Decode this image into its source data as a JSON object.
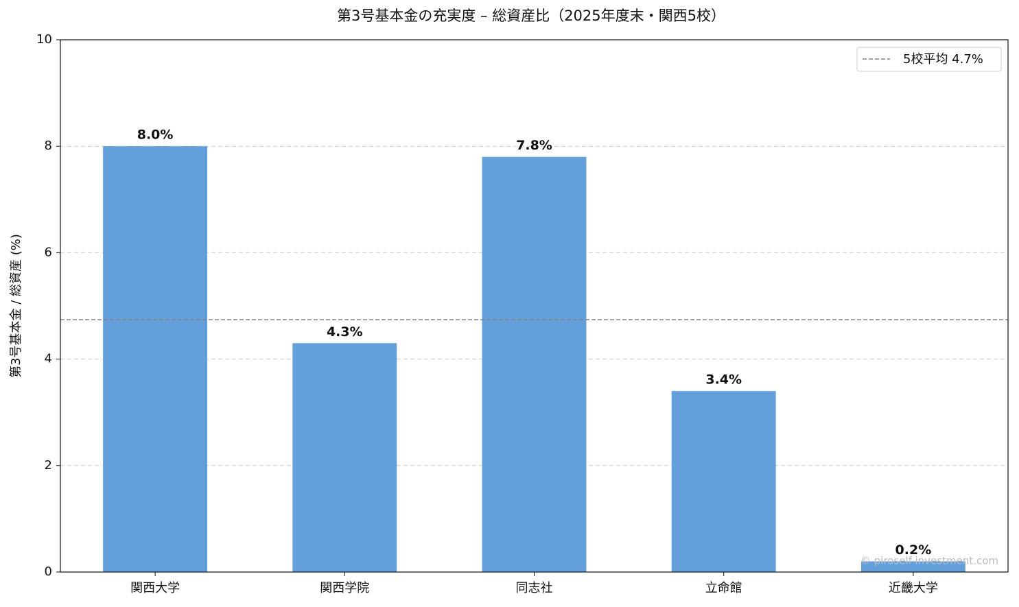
{
  "chart_data": {
    "type": "bar",
    "title": "第3号基本金の充実度 – 総資産比（2025年度末・関西5校）",
    "y_label": "第3号基本金 / 総資産 (%)",
    "categories": [
      "関西大学",
      "関西学院",
      "同志社",
      "立命館",
      "近畿大学"
    ],
    "values": [
      8.0,
      4.3,
      7.8,
      3.4,
      0.2
    ],
    "value_labels": [
      "8.0%",
      "4.3%",
      "7.8%",
      "3.4%",
      "0.2%"
    ],
    "color": "#639fdb",
    "ylim": [
      0,
      10
    ],
    "yticks": [
      0,
      2,
      4,
      6,
      8,
      10
    ],
    "grid": true,
    "average": {
      "value": 4.74,
      "label": "5校平均 4.7%",
      "color": "#808080"
    },
    "legend": "upper right",
    "watermark": "© piroself-investment.com"
  }
}
